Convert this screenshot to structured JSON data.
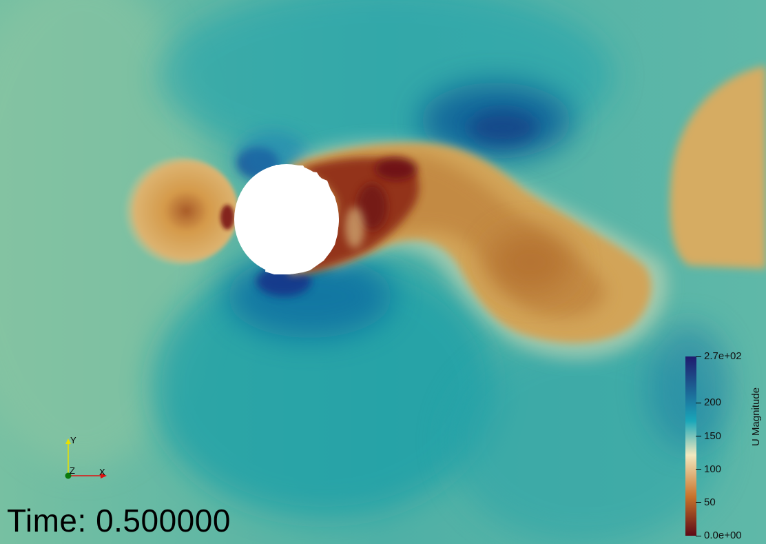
{
  "time_label": "Time: 0.500000",
  "colorbar": {
    "title": "U Magnitude",
    "max_label": "2.7e+02",
    "min_label": "0.0e+00",
    "range": [
      0,
      270
    ],
    "ticks": [
      {
        "value": 270,
        "label": "2.7e+02"
      },
      {
        "value": 200,
        "label": "200"
      },
      {
        "value": 150,
        "label": "150"
      },
      {
        "value": 100,
        "label": "100"
      },
      {
        "value": 50,
        "label": "50"
      },
      {
        "value": 0,
        "label": "0.0e+00"
      }
    ],
    "colors": {
      "low": "#5e0a16",
      "mid_low": "#c8742c",
      "mid": "#f2e9bf",
      "mid_high": "#1aa7b9",
      "high": "#1f1b6e"
    }
  },
  "axes": {
    "x_label": "X",
    "y_label": "Y",
    "z_label": "Z",
    "x_color": "#e01010",
    "y_color": "#e8e000",
    "z_color": "#0c7a0c"
  },
  "icons": [
    "axes-triad-icon"
  ]
}
